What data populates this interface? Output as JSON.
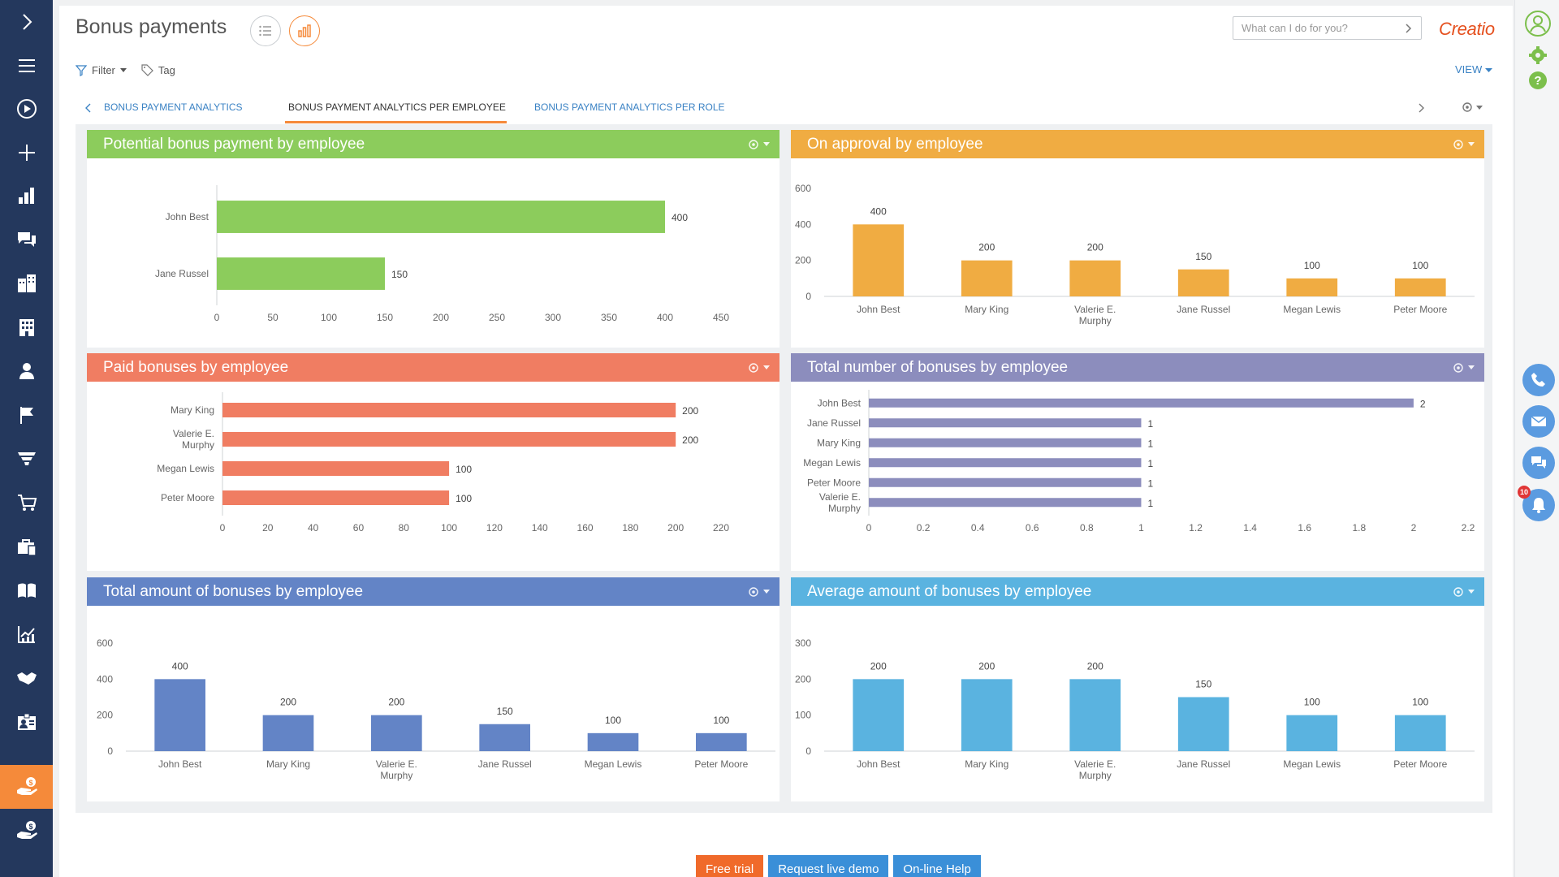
{
  "page": {
    "title": "Bonus payments",
    "search_placeholder": "What can I do for you?",
    "logo": "Creatio",
    "filter_label": "Filter",
    "tag_label": "Tag",
    "view_label": "VIEW"
  },
  "tabs": [
    {
      "label": "BONUS PAYMENT ANALYTICS"
    },
    {
      "label": "BONUS PAYMENT ANALYTICS PER EMPLOYEE"
    },
    {
      "label": "BONUS PAYMENT ANALYTICS PER ROLE"
    }
  ],
  "nav_icons": [
    "expand-icon",
    "menu-icon",
    "play-icon",
    "plus-icon",
    "dashboard-icon",
    "feed-icon",
    "accounts-icon",
    "contacts-icon",
    "person-icon",
    "flag-icon",
    "funnel-icon",
    "cart-icon",
    "briefcase-icon",
    "book-icon",
    "analytics-icon",
    "handshake-icon",
    "employee-icon",
    "bonus-icon",
    "bonus-alt-icon"
  ],
  "right_icons": [
    "profile-icon",
    "settings-icon",
    "help-icon",
    "phone-icon",
    "email-icon",
    "chat-icon",
    "notification-icon"
  ],
  "notification_count": "10",
  "colors": {
    "green": "#8ccc5c",
    "orange": "#f0ac42",
    "salmon": "#f07d62",
    "purple": "#8c8dbd",
    "blue": "#6384c6",
    "sky": "#5ab3e0",
    "accent": "#f58a3a",
    "nav": "#24385d"
  },
  "widgets": {
    "potential": {
      "title": "Potential bonus payment by employee",
      "chart_data": {
        "type": "bar",
        "orientation": "horizontal",
        "categories": [
          "John Best",
          "Jane Russel"
        ],
        "values": [
          400,
          150
        ],
        "xlim": [
          0,
          450
        ],
        "ticks": [
          "0",
          "50",
          "100",
          "150",
          "200",
          "250",
          "300",
          "350",
          "400",
          "450"
        ]
      }
    },
    "approval": {
      "title": "On approval by employee",
      "chart_data": {
        "type": "bar",
        "orientation": "vertical",
        "categories": [
          "John Best",
          "Mary King",
          "Valerie E. Murphy",
          "Jane Russel",
          "Megan Lewis",
          "Peter Moore"
        ],
        "values": [
          400,
          200,
          200,
          150,
          100,
          100
        ],
        "ylim": [
          0,
          600
        ],
        "ticks": [
          "0",
          "200",
          "400",
          "600"
        ]
      }
    },
    "paid": {
      "title": "Paid bonuses by employee",
      "chart_data": {
        "type": "bar",
        "orientation": "horizontal",
        "categories": [
          "Mary King",
          "Valerie E. Murphy",
          "Megan Lewis",
          "Peter Moore"
        ],
        "values": [
          200,
          200,
          100,
          100
        ],
        "xlim": [
          0,
          220
        ],
        "ticks": [
          "0",
          "20",
          "40",
          "60",
          "80",
          "100",
          "120",
          "140",
          "160",
          "180",
          "200",
          "220"
        ]
      }
    },
    "count": {
      "title": "Total number of bonuses by employee",
      "chart_data": {
        "type": "bar",
        "orientation": "horizontal",
        "categories": [
          "John Best",
          "Jane Russel",
          "Mary King",
          "Megan Lewis",
          "Peter Moore",
          "Valerie E. Murphy"
        ],
        "values": [
          2,
          1,
          1,
          1,
          1,
          1
        ],
        "xlim": [
          0,
          2.2
        ],
        "ticks": [
          "0",
          "0.2",
          "0.4",
          "0.6",
          "0.8",
          "1",
          "1.2",
          "1.4",
          "1.6",
          "1.8",
          "2",
          "2.2"
        ]
      }
    },
    "total": {
      "title": "Total amount of bonuses by employee",
      "chart_data": {
        "type": "bar",
        "orientation": "vertical",
        "categories": [
          "John Best",
          "Mary King",
          "Valerie E. Murphy",
          "Jane Russel",
          "Megan Lewis",
          "Peter Moore"
        ],
        "values": [
          400,
          200,
          200,
          150,
          100,
          100
        ],
        "ylim": [
          0,
          600
        ],
        "ticks": [
          "0",
          "200",
          "400",
          "600"
        ]
      }
    },
    "average": {
      "title": "Average amount of bonuses by employee",
      "chart_data": {
        "type": "bar",
        "orientation": "vertical",
        "categories": [
          "John Best",
          "Mary King",
          "Valerie E. Murphy",
          "Jane Russel",
          "Megan Lewis",
          "Peter Moore"
        ],
        "values": [
          200,
          200,
          200,
          150,
          100,
          100
        ],
        "ylim": [
          0,
          300
        ],
        "ticks": [
          "0",
          "100",
          "200",
          "300"
        ]
      }
    }
  },
  "footer": {
    "free_trial": "Free trial",
    "request_demo": "Request live demo",
    "online_help": "On-line Help"
  }
}
